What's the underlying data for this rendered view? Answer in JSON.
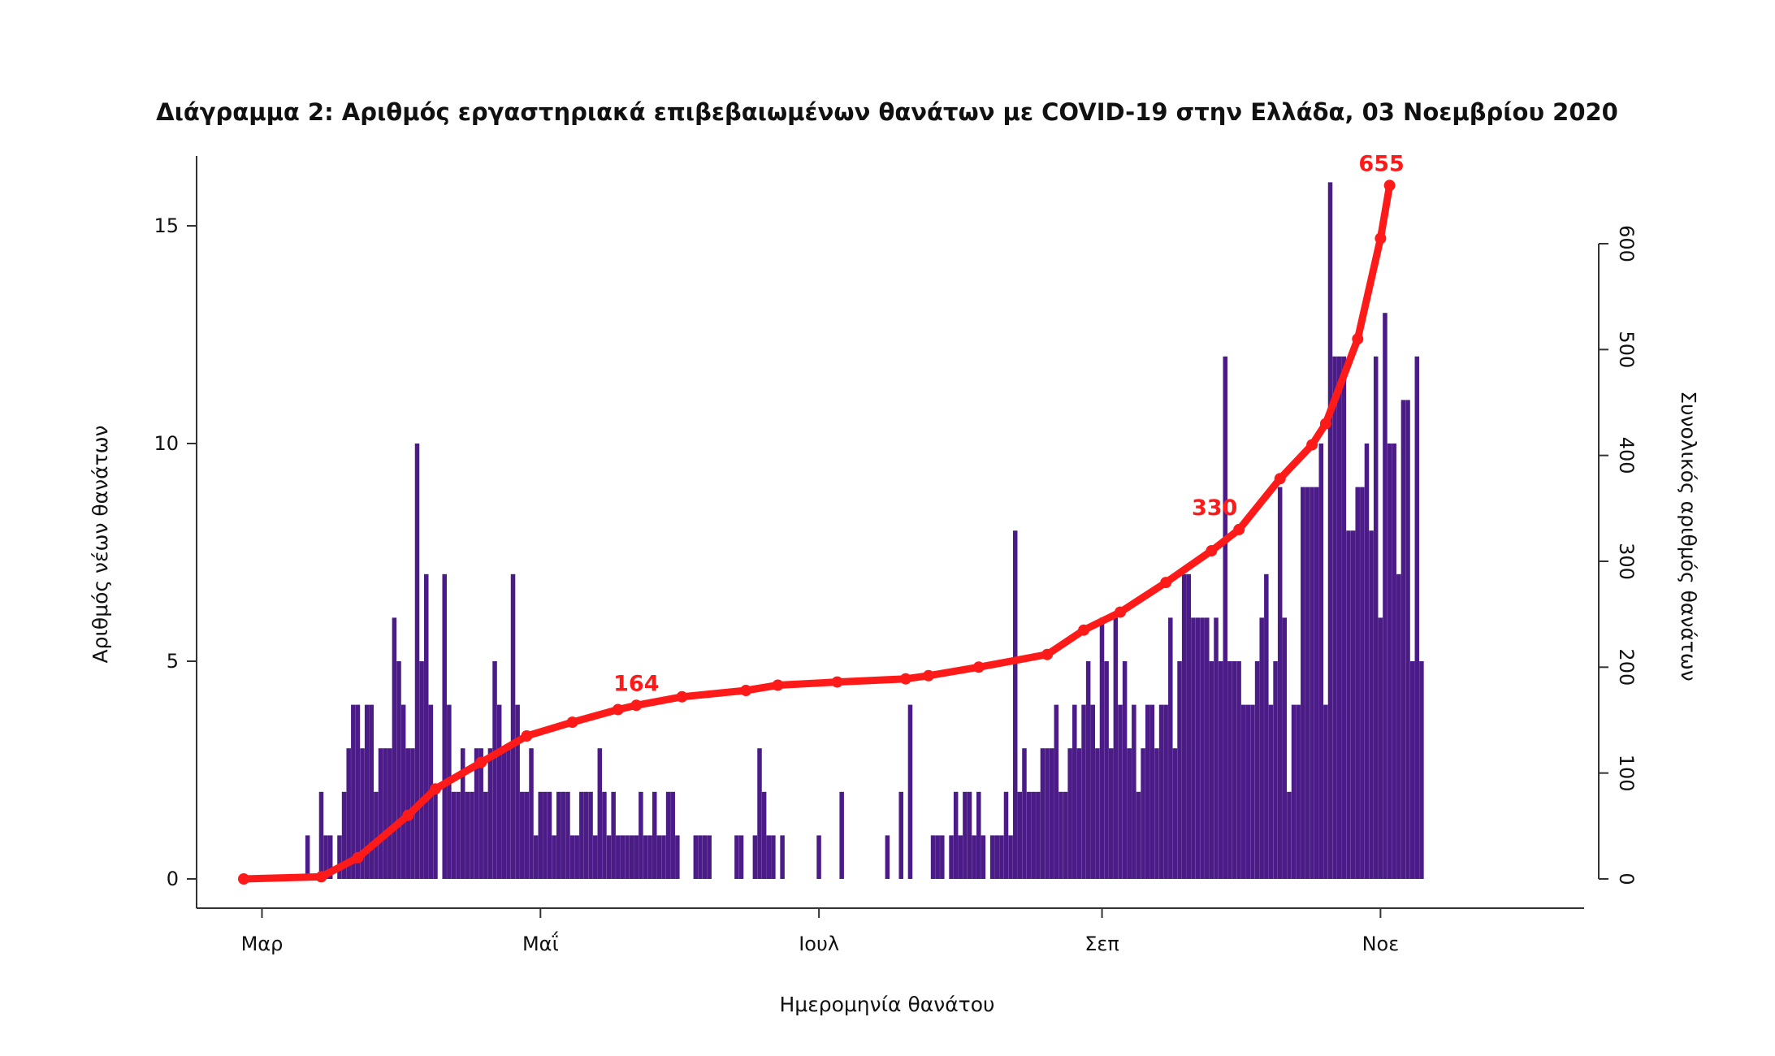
{
  "colors": {
    "bar": "#4b1c87",
    "cumulative": "#ff1a1a",
    "axis": "#333333",
    "text": "#111111"
  },
  "chart_data": {
    "type": "bar",
    "title": "Διάγραμμα 2: Αριθμός εργαστηριακά επιβεβαιωμένων θανάτων με COVID-19 στην Ελλάδα, 03 Νοεμβρίου 2020",
    "xlabel": "Ημερομηνία θανάτου",
    "ylabel": "Αριθμός νέων θανάτων",
    "y2label": "Συνολικός αριθμός θανάτων",
    "x_start": "2020-02-26",
    "x_ticks": [
      {
        "date": "2020-03-01",
        "label": "Μαρ"
      },
      {
        "date": "2020-05-01",
        "label": "Μαΐ"
      },
      {
        "date": "2020-07-01",
        "label": "Ιουλ"
      },
      {
        "date": "2020-09-01",
        "label": "Σεπ"
      },
      {
        "date": "2020-11-01",
        "label": "Νοε"
      }
    ],
    "ylim": [
      0,
      16.7
    ],
    "y_ticks": [
      0,
      5,
      10,
      15
    ],
    "y2lim": [
      0,
      655
    ],
    "y2_ticks": [
      0,
      100,
      200,
      300,
      400,
      500,
      600
    ],
    "series": [
      {
        "type": "bar",
        "values": [
          0,
          0,
          0,
          0,
          0,
          0,
          0,
          0,
          0,
          0,
          0,
          0,
          0,
          0,
          1,
          0,
          0,
          2,
          1,
          1,
          0,
          1,
          2,
          3,
          4,
          4,
          3,
          4,
          4,
          2,
          3,
          3,
          3,
          6,
          5,
          4,
          3,
          3,
          10,
          5,
          7,
          4,
          2,
          0,
          7,
          4,
          2,
          2,
          3,
          2,
          2,
          3,
          3,
          2,
          3,
          5,
          4,
          3,
          3,
          7,
          4,
          2,
          2,
          3,
          1,
          2,
          2,
          2,
          1,
          2,
          2,
          2,
          1,
          1,
          2,
          2,
          2,
          1,
          3,
          2,
          1,
          2,
          1,
          1,
          1,
          1,
          1,
          2,
          1,
          1,
          2,
          1,
          1,
          2,
          2,
          1,
          0,
          0,
          0,
          1,
          1,
          1,
          1,
          0,
          0,
          0,
          0,
          0,
          1,
          1,
          0,
          0,
          1,
          3,
          2,
          1,
          1,
          0,
          1,
          0,
          0,
          0,
          0,
          0,
          0,
          0,
          1,
          0,
          0,
          0,
          0,
          2,
          0,
          0,
          0,
          0,
          0,
          0,
          0,
          0,
          0,
          1,
          0,
          0,
          2,
          0,
          4,
          0,
          0,
          0,
          0,
          1,
          1,
          1,
          0,
          1,
          2,
          1,
          2,
          2,
          1,
          2,
          1,
          0,
          1,
          1,
          1,
          2,
          1,
          8,
          2,
          3,
          2,
          2,
          2,
          3,
          3,
          3,
          4,
          2,
          2,
          3,
          4,
          3,
          4,
          5,
          4,
          3,
          6,
          5,
          3,
          6,
          4,
          5,
          3,
          4,
          2,
          3,
          4,
          4,
          3,
          4,
          4,
          6,
          3,
          5,
          7,
          7,
          6,
          6,
          6,
          6,
          5,
          6,
          5,
          12,
          5,
          5,
          5,
          4,
          4,
          4,
          5,
          6,
          7,
          4,
          5,
          9,
          6,
          2,
          4,
          4,
          9,
          9,
          9,
          9,
          10,
          4,
          16,
          12,
          12,
          12,
          8,
          8,
          9,
          9,
          10,
          8,
          12,
          6,
          13,
          10,
          10,
          7,
          11,
          11,
          5,
          12,
          5
        ]
      },
      {
        "type": "line",
        "name": "cumulative",
        "points": [
          {
            "date": "2020-02-26",
            "value": 0
          },
          {
            "date": "2020-03-14",
            "value": 2
          },
          {
            "date": "2020-03-22",
            "value": 20
          },
          {
            "date": "2020-04-02",
            "value": 60
          },
          {
            "date": "2020-04-08",
            "value": 85
          },
          {
            "date": "2020-04-18",
            "value": 110
          },
          {
            "date": "2020-04-28",
            "value": 135
          },
          {
            "date": "2020-05-08",
            "value": 148
          },
          {
            "date": "2020-05-18",
            "value": 160
          },
          {
            "date": "2020-05-22",
            "value": 164
          },
          {
            "date": "2020-06-01",
            "value": 172
          },
          {
            "date": "2020-06-15",
            "value": 178
          },
          {
            "date": "2020-06-22",
            "value": 183
          },
          {
            "date": "2020-07-05",
            "value": 186
          },
          {
            "date": "2020-07-20",
            "value": 189
          },
          {
            "date": "2020-07-25",
            "value": 192
          },
          {
            "date": "2020-08-05",
            "value": 200
          },
          {
            "date": "2020-08-20",
            "value": 212
          },
          {
            "date": "2020-08-28",
            "value": 235
          },
          {
            "date": "2020-09-05",
            "value": 252
          },
          {
            "date": "2020-09-15",
            "value": 280
          },
          {
            "date": "2020-09-25",
            "value": 310
          },
          {
            "date": "2020-10-01",
            "value": 330
          },
          {
            "date": "2020-10-10",
            "value": 378
          },
          {
            "date": "2020-10-17",
            "value": 410
          },
          {
            "date": "2020-10-20",
            "value": 430
          },
          {
            "date": "2020-10-27",
            "value": 510
          },
          {
            "date": "2020-11-01",
            "value": 605
          },
          {
            "date": "2020-11-03",
            "value": 655
          }
        ]
      }
    ],
    "annotations": [
      {
        "date": "2020-05-22",
        "value": 164,
        "text": "164"
      },
      {
        "date": "2020-10-01",
        "value": 330,
        "text": "330"
      },
      {
        "date": "2020-11-03",
        "value": 655,
        "text": "655"
      }
    ]
  }
}
